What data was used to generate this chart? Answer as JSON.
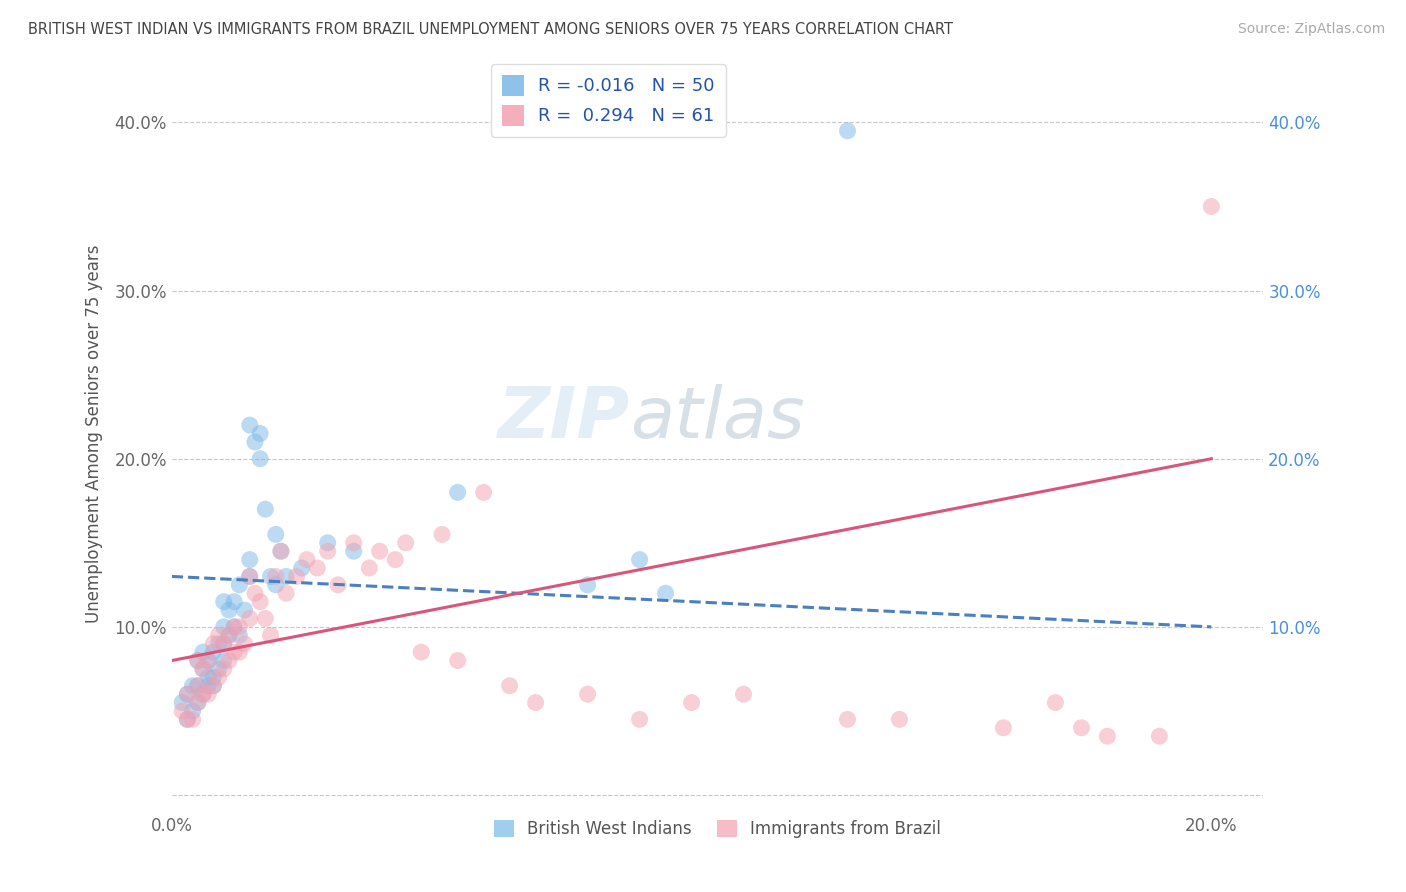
{
  "title": "BRITISH WEST INDIAN VS IMMIGRANTS FROM BRAZIL UNEMPLOYMENT AMONG SENIORS OVER 75 YEARS CORRELATION CHART",
  "source": "Source: ZipAtlas.com",
  "ylabel": "Unemployment Among Seniors over 75 years",
  "xlim": [
    0.0,
    0.21
  ],
  "ylim": [
    -0.01,
    0.44
  ],
  "yticks": [
    0.0,
    0.1,
    0.2,
    0.3,
    0.4
  ],
  "ytick_labels_left": [
    "",
    "10.0%",
    "20.0%",
    "30.0%",
    "40.0%"
  ],
  "ytick_labels_right": [
    "",
    "10.0%",
    "20.0%",
    "30.0%",
    "40.0%"
  ],
  "xticks": [
    0.0,
    0.05,
    0.1,
    0.15,
    0.2
  ],
  "xtick_labels": [
    "0.0%",
    "",
    "",
    "",
    "20.0%"
  ],
  "series1_color": "#7ab8e8",
  "series2_color": "#f4a0b0",
  "series1_label": "British West Indians",
  "series2_label": "Immigrants from Brazil",
  "R1": -0.016,
  "N1": 50,
  "R2": 0.294,
  "N2": 61,
  "line1_color": "#4a7fc1",
  "line2_color": "#d9557a",
  "background_color": "#ffffff",
  "grid_color": "#c8c8c8",
  "title_color": "#444444",
  "watermark_text": "ZIPatlas",
  "series1_x": [
    0.002,
    0.003,
    0.003,
    0.004,
    0.004,
    0.005,
    0.005,
    0.005,
    0.006,
    0.006,
    0.006,
    0.007,
    0.007,
    0.007,
    0.008,
    0.008,
    0.008,
    0.009,
    0.009,
    0.01,
    0.01,
    0.01,
    0.01,
    0.011,
    0.011,
    0.012,
    0.012,
    0.013,
    0.013,
    0.014,
    0.015,
    0.015,
    0.015,
    0.016,
    0.017,
    0.017,
    0.018,
    0.019,
    0.02,
    0.02,
    0.021,
    0.022,
    0.025,
    0.03,
    0.035,
    0.055,
    0.08,
    0.09,
    0.095,
    0.13
  ],
  "series1_y": [
    0.055,
    0.045,
    0.06,
    0.05,
    0.065,
    0.055,
    0.065,
    0.08,
    0.06,
    0.075,
    0.085,
    0.065,
    0.07,
    0.08,
    0.065,
    0.07,
    0.085,
    0.075,
    0.09,
    0.08,
    0.09,
    0.1,
    0.115,
    0.095,
    0.11,
    0.1,
    0.115,
    0.095,
    0.125,
    0.11,
    0.13,
    0.14,
    0.22,
    0.21,
    0.2,
    0.215,
    0.17,
    0.13,
    0.155,
    0.125,
    0.145,
    0.13,
    0.135,
    0.15,
    0.145,
    0.18,
    0.125,
    0.14,
    0.12,
    0.395
  ],
  "series2_x": [
    0.002,
    0.003,
    0.003,
    0.004,
    0.005,
    0.005,
    0.005,
    0.006,
    0.006,
    0.007,
    0.007,
    0.008,
    0.008,
    0.009,
    0.009,
    0.01,
    0.01,
    0.011,
    0.011,
    0.012,
    0.012,
    0.013,
    0.013,
    0.014,
    0.015,
    0.015,
    0.016,
    0.017,
    0.018,
    0.019,
    0.02,
    0.021,
    0.022,
    0.024,
    0.026,
    0.028,
    0.03,
    0.032,
    0.035,
    0.038,
    0.04,
    0.043,
    0.045,
    0.048,
    0.052,
    0.055,
    0.06,
    0.065,
    0.07,
    0.08,
    0.09,
    0.1,
    0.11,
    0.13,
    0.14,
    0.16,
    0.17,
    0.175,
    0.18,
    0.19,
    0.2
  ],
  "series2_y": [
    0.05,
    0.045,
    0.06,
    0.045,
    0.055,
    0.065,
    0.08,
    0.06,
    0.075,
    0.06,
    0.08,
    0.065,
    0.09,
    0.07,
    0.095,
    0.075,
    0.09,
    0.08,
    0.095,
    0.085,
    0.1,
    0.085,
    0.1,
    0.09,
    0.105,
    0.13,
    0.12,
    0.115,
    0.105,
    0.095,
    0.13,
    0.145,
    0.12,
    0.13,
    0.14,
    0.135,
    0.145,
    0.125,
    0.15,
    0.135,
    0.145,
    0.14,
    0.15,
    0.085,
    0.155,
    0.08,
    0.18,
    0.065,
    0.055,
    0.06,
    0.045,
    0.055,
    0.06,
    0.045,
    0.045,
    0.04,
    0.055,
    0.04,
    0.035,
    0.035,
    0.35
  ]
}
